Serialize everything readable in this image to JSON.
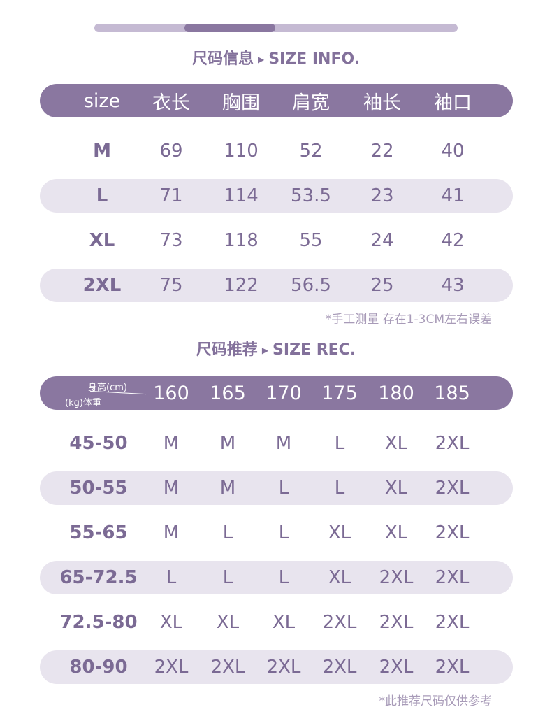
{
  "colors": {
    "header": "#8a77a0",
    "stripe": "#e8e4ee",
    "text": "#7b6a94"
  },
  "scroll_indicator": {
    "position_fraction": 0.25
  },
  "size_info": {
    "title_cn": "尺码信息",
    "title_en": "SIZE INFO.",
    "arrow_icon": "triangle-right",
    "headers": [
      "size",
      "衣长",
      "胸围",
      "肩宽",
      "袖长",
      "袖口"
    ],
    "rows": [
      [
        "M",
        "69",
        "110",
        "52",
        "22",
        "40"
      ],
      [
        "L",
        "71",
        "114",
        "53.5",
        "23",
        "41"
      ],
      [
        "XL",
        "73",
        "118",
        "55",
        "24",
        "42"
      ],
      [
        "2XL",
        "75",
        "122",
        "56.5",
        "25",
        "43"
      ]
    ],
    "note": "*手工测量 存在1-3CM左右误差"
  },
  "size_rec": {
    "title_cn": "尺码推荐",
    "title_en": "SIZE REC.",
    "arrow_icon": "triangle-right",
    "corner_height": "身高(cm)",
    "corner_weight": "(kg)体重",
    "headers": [
      "160",
      "165",
      "170",
      "175",
      "180",
      "185"
    ],
    "rows": [
      [
        "45-50",
        "M",
        "M",
        "M",
        "L",
        "XL",
        "2XL"
      ],
      [
        "50-55",
        "M",
        "M",
        "L",
        "L",
        "XL",
        "2XL"
      ],
      [
        "55-65",
        "M",
        "L",
        "L",
        "XL",
        "XL",
        "2XL"
      ],
      [
        "65-72.5",
        "L",
        "L",
        "L",
        "XL",
        "2XL",
        "2XL"
      ],
      [
        "72.5-80",
        "XL",
        "XL",
        "XL",
        "2XL",
        "2XL",
        "2XL"
      ],
      [
        "80-90",
        "2XL",
        "2XL",
        "2XL",
        "2XL",
        "2XL",
        "2XL"
      ]
    ],
    "note": "*此推荐尺码仅供参考"
  }
}
